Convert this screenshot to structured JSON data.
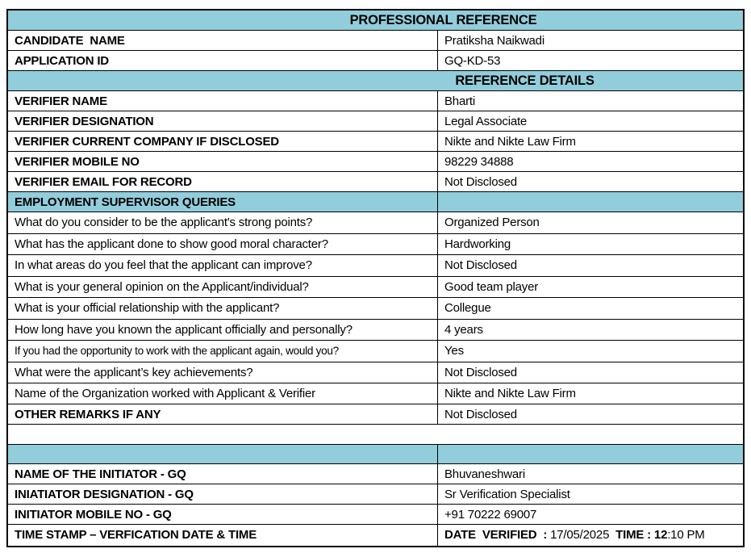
{
  "colors": {
    "section_header_bg": "#92CDDC",
    "border": "#000000"
  },
  "titles": {
    "professional_reference": "PROFESSIONAL REFERENCE",
    "reference_details": "REFERENCE DETAILS"
  },
  "candidate": [
    {
      "label": "CANDIDATE  NAME",
      "value": "Pratiksha Naikwadi"
    },
    {
      "label": "APPLICATION ID",
      "value": "GQ-KD-53"
    }
  ],
  "verifier": [
    {
      "label": "VERIFIER NAME",
      "value": "Bharti"
    },
    {
      "label": "VERIFIER DESIGNATION",
      "value": "Legal Associate"
    },
    {
      "label": "VERIFIER CURRENT COMPANY IF DISCLOSED",
      "value": "Nikte and Nikte Law Firm"
    },
    {
      "label": "VERIFIER MOBILE NO",
      "value": "98229 34888"
    },
    {
      "label": "VERIFIER EMAIL FOR RECORD",
      "value": "Not Disclosed"
    }
  ],
  "queries_header": "EMPLOYMENT SUPERVISOR QUERIES",
  "queries": [
    {
      "label": "What do you consider to be the applicant's strong points?",
      "value": "Organized Person"
    },
    {
      "label": "What has the applicant done to show good moral character?",
      "value": "Hardworking"
    },
    {
      "label": "In what areas do you feel that the applicant can improve?",
      "value": "Not Disclosed"
    },
    {
      "label": "What is your general opinion on the Applicant/individual?",
      "value": "Good team player"
    },
    {
      "label": "What is your official relationship with the applicant?",
      "value": "Collegue"
    },
    {
      "label": "How long have you known the applicant officially and personally?",
      "value": "4 years"
    },
    {
      "label": "If you had the opportunity to work with the applicant again, would you?",
      "value": "Yes"
    },
    {
      "label": "What were the applicant’s key achievements?",
      "value": "Not Disclosed"
    },
    {
      "label": "Name of the Organization worked with Applicant & Verifier",
      "value": "Nikte and Nikte Law Firm"
    }
  ],
  "other_remarks": {
    "label": "OTHER REMARKS IF ANY",
    "value": "Not Disclosed"
  },
  "initiator": [
    {
      "label": "NAME OF THE INITIATOR - GQ",
      "value": "Bhuvaneshwari"
    },
    {
      "label": "INIATIATOR DESIGNATION - GQ",
      "value": "Sr Verification Specialist"
    },
    {
      "label": "INITIATOR MOBILE NO - GQ",
      "value": "+91 70222 69007"
    }
  ],
  "timestamp": {
    "label": "TIME STAMP – VERFICATION DATE & TIME",
    "date_label": "DATE  VERIFIED  : ",
    "date_value": "17/05/2025",
    "time_label": "  TIME : ",
    "time_hour": "12",
    "time_rest": ":10 PM"
  }
}
